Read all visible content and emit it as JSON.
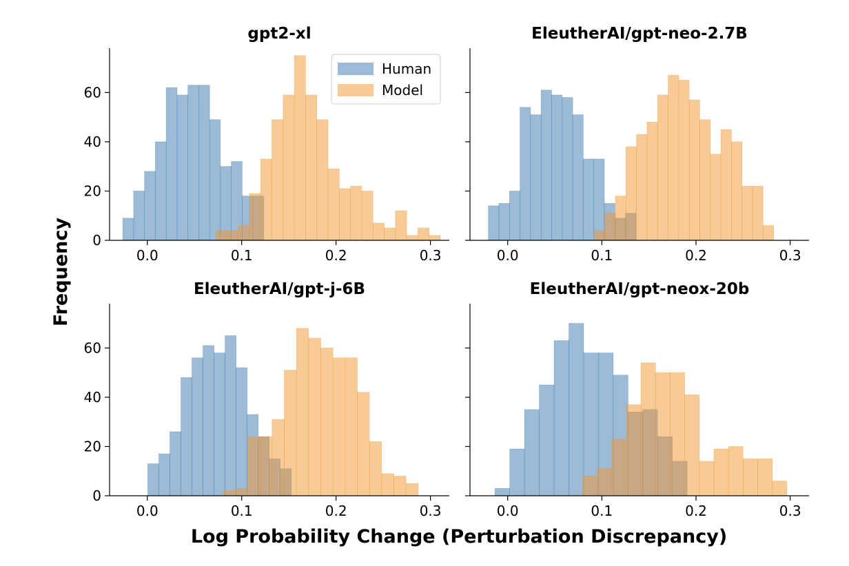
{
  "figure": {
    "ylabel": "Frequency",
    "xlabel": "Log Probability Change (Perturbation Discrepancy)"
  },
  "colors": {
    "human": "#3a78b0",
    "model": "#f2952e"
  },
  "legend": {
    "position": "top-right of first panel",
    "human_label": "Human",
    "model_label": "Model"
  },
  "chart_data": [
    {
      "type": "histogram",
      "title": "gpt2-xl",
      "xlim": [
        -0.04,
        0.32
      ],
      "ylim": [
        0,
        78
      ],
      "xticks": [
        "0.0",
        "0.1",
        "0.2",
        "0.3"
      ],
      "yticks": [
        "0",
        "20",
        "40",
        "60"
      ],
      "show_yticklabels": true,
      "legend": true,
      "series": [
        {
          "name": "Human",
          "bins_start": -0.026,
          "bin_width": 0.0115,
          "counts": [
            9,
            20,
            28,
            40,
            62,
            59,
            63,
            63,
            49,
            30,
            32,
            18,
            18
          ]
        },
        {
          "name": "Model",
          "bins_start": 0.0725,
          "bin_width": 0.0119,
          "counts": [
            4,
            4,
            6,
            19,
            33,
            49,
            59,
            75,
            59,
            49,
            29,
            21,
            22,
            20,
            7,
            5,
            12,
            2,
            5,
            2
          ]
        }
      ]
    },
    {
      "type": "histogram",
      "title": "EleutherAI/gpt-neo-2.7B",
      "xlim": [
        -0.04,
        0.32
      ],
      "ylim": [
        0,
        78
      ],
      "xticks": [
        "0.0",
        "0.1",
        "0.2",
        "0.3"
      ],
      "yticks": [
        "0",
        "20",
        "40",
        "60"
      ],
      "show_yticklabels": false,
      "legend": false,
      "series": [
        {
          "name": "Human",
          "bins_start": -0.0205,
          "bin_width": 0.0112,
          "counts": [
            14,
            15,
            20,
            54,
            51,
            61,
            59,
            58,
            51,
            33,
            33,
            15,
            9,
            11
          ]
        },
        {
          "name": "Model",
          "bins_start": 0.092,
          "bin_width": 0.0112,
          "counts": [
            4,
            11,
            18,
            38,
            43,
            48,
            59,
            67,
            65,
            57,
            49,
            35,
            45,
            40,
            22,
            22,
            6
          ]
        }
      ]
    },
    {
      "type": "histogram",
      "title": "EleutherAI/gpt-j-6B",
      "xlim": [
        -0.04,
        0.32
      ],
      "ylim": [
        0,
        78
      ],
      "xticks": [
        "0.0",
        "0.1",
        "0.2",
        "0.3"
      ],
      "yticks": [
        "0",
        "20",
        "40",
        "60"
      ],
      "show_yticklabels": true,
      "legend": false,
      "series": [
        {
          "name": "Human",
          "bins_start": 0.0005,
          "bin_width": 0.0117,
          "counts": [
            13,
            17,
            26,
            48,
            56,
            61,
            58,
            65,
            52,
            33,
            24,
            15,
            11
          ]
        },
        {
          "name": "Model",
          "bins_start": 0.0806,
          "bin_width": 0.0129,
          "counts": [
            2,
            3,
            24,
            24,
            31,
            51,
            68,
            64,
            60,
            56,
            56,
            42,
            22,
            9,
            8,
            5
          ]
        }
      ]
    },
    {
      "type": "histogram",
      "title": "EleutherAI/gpt-neox-20b",
      "xlim": [
        -0.04,
        0.32
      ],
      "ylim": [
        0,
        78
      ],
      "xticks": [
        "0.0",
        "0.1",
        "0.2",
        "0.3"
      ],
      "yticks": [
        "0",
        "20",
        "40",
        "60"
      ],
      "show_yticklabels": false,
      "legend": false,
      "series": [
        {
          "name": "Human",
          "bins_start": -0.0135,
          "bin_width": 0.0157,
          "counts": [
            3,
            19,
            35,
            45,
            63,
            70,
            58,
            58,
            49,
            34,
            35,
            24,
            14
          ]
        },
        {
          "name": "Model",
          "bins_start": 0.0795,
          "bin_width": 0.0155,
          "counts": [
            8,
            11,
            23,
            37,
            54,
            50,
            50,
            41,
            14,
            19,
            20,
            15,
            15,
            6
          ]
        }
      ]
    }
  ]
}
